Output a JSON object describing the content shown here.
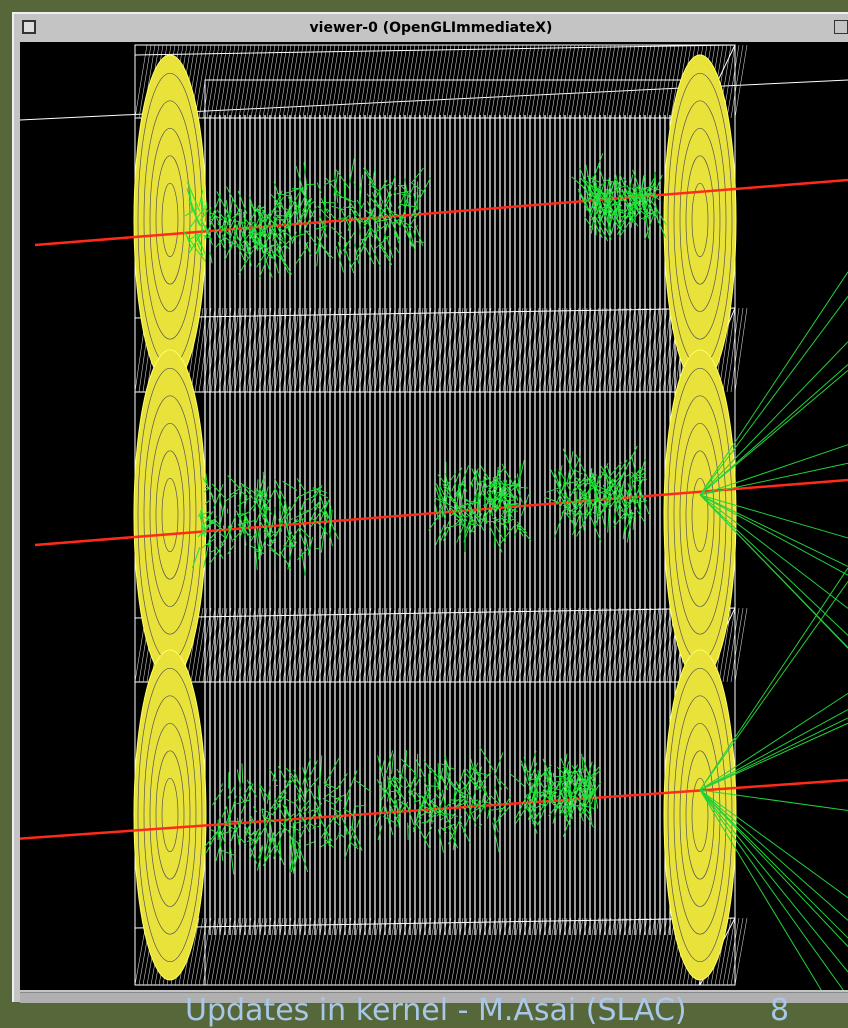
{
  "window": {
    "title": "viewer-0 (OpenGLImmediateX)"
  },
  "footer": {
    "text": "Updates in kernel - M.Asai (SLAC)",
    "page": "8"
  }
}
